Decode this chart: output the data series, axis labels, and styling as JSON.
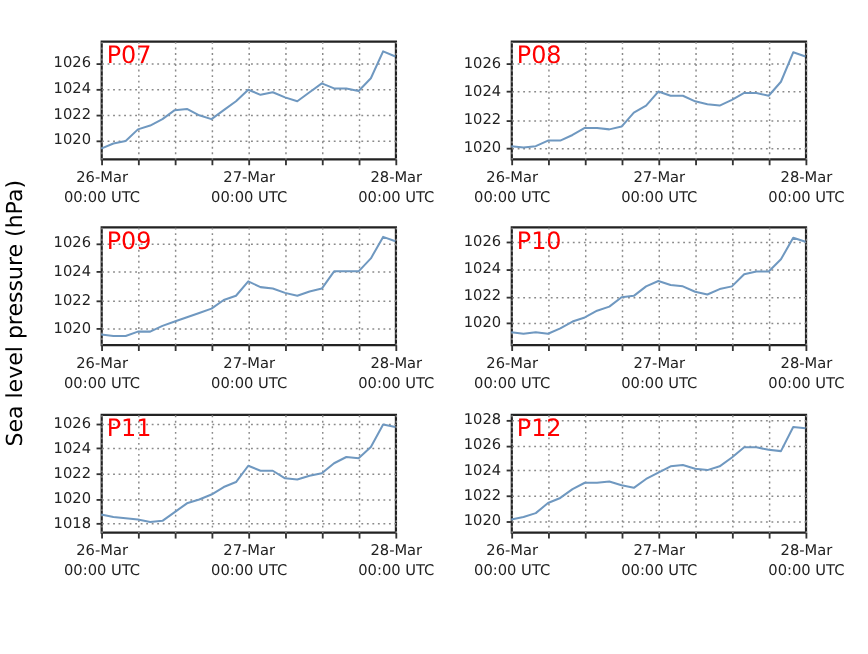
{
  "chart_data": [
    {
      "type": "line",
      "title": "P07",
      "categories": [
        "26-Mar\n00:00 UTC",
        null,
        null,
        null,
        null,
        null,
        null,
        null,
        null,
        null,
        null,
        null,
        "27-Mar\n00:00 UTC",
        null,
        null,
        null,
        null,
        null,
        null,
        null,
        null,
        null,
        null,
        null,
        "28-Mar\n00:00 UTC"
      ],
      "series": [
        {
          "color": "#6f98c0",
          "values": [
            1019.3,
            1019.7,
            1019.9,
            1020.8,
            1021.1,
            1021.6,
            1022.3,
            1022.4,
            1021.9,
            1021.6,
            1022.3,
            1023.0,
            1023.9,
            1023.5,
            1023.7,
            1023.3,
            1023.0,
            1023.7,
            1024.4,
            1024.0,
            1024.0,
            1023.8,
            1024.8,
            1026.9,
            1026.5
          ]
        }
      ],
      "ylim": [
        1018.5,
        1027.7
      ],
      "yticks": [
        1020,
        1022,
        1024,
        1026
      ],
      "grid": true,
      "line_style": "solid"
    },
    {
      "type": "line",
      "title": "P08",
      "categories": [
        "26-Mar\n00:00 UTC",
        null,
        null,
        null,
        null,
        null,
        null,
        null,
        null,
        null,
        null,
        null,
        "27-Mar\n00:00 UTC",
        null,
        null,
        null,
        null,
        null,
        null,
        null,
        null,
        null,
        null,
        null,
        "28-Mar\n00:00 UTC"
      ],
      "series": [
        {
          "color": "#6f98c0",
          "values": [
            1020.1,
            1020.0,
            1020.1,
            1020.5,
            1020.5,
            1020.9,
            1021.4,
            1021.4,
            1021.3,
            1021.5,
            1022.5,
            1023.0,
            1024.0,
            1023.7,
            1023.7,
            1023.3,
            1023.1,
            1023.0,
            1023.4,
            1023.9,
            1023.9,
            1023.7,
            1024.7,
            1026.8,
            1026.5
          ]
        }
      ],
      "ylim": [
        1019.2,
        1027.6
      ],
      "yticks": [
        1020,
        1022,
        1024,
        1026
      ],
      "grid": true,
      "line_style": "solid"
    },
    {
      "type": "line",
      "title": "P09",
      "ylabel": "Sea level pressure (hPa)",
      "categories": [
        "26-Mar\n00:00 UTC",
        null,
        null,
        null,
        null,
        null,
        null,
        null,
        null,
        null,
        null,
        null,
        "27-Mar\n00:00 UTC",
        null,
        null,
        null,
        null,
        null,
        null,
        null,
        null,
        null,
        null,
        null,
        "28-Mar\n00:00 UTC"
      ],
      "series": [
        {
          "color": "#6f98c0",
          "values": [
            1019.6,
            1019.5,
            1019.5,
            1019.8,
            1019.8,
            1020.2,
            1020.5,
            1020.8,
            1021.1,
            1021.4,
            1022.0,
            1022.3,
            1023.3,
            1022.9,
            1022.8,
            1022.5,
            1022.3,
            1022.6,
            1022.8,
            1024.0,
            1024.0,
            1024.0,
            1024.9,
            1026.4,
            1026.1
          ]
        }
      ],
      "ylim": [
        1018.9,
        1027.1
      ],
      "yticks": [
        1020,
        1022,
        1024,
        1026
      ],
      "grid": true,
      "line_style": "solid"
    },
    {
      "type": "line",
      "title": "P10",
      "categories": [
        "26-Mar\n00:00 UTC",
        null,
        null,
        null,
        null,
        null,
        null,
        null,
        null,
        null,
        null,
        null,
        "27-Mar\n00:00 UTC",
        null,
        null,
        null,
        null,
        null,
        null,
        null,
        null,
        null,
        null,
        null,
        "28-Mar\n00:00 UTC"
      ],
      "series": [
        {
          "color": "#6f98c0",
          "values": [
            1019.3,
            1019.2,
            1019.3,
            1019.2,
            1019.6,
            1020.1,
            1020.4,
            1020.9,
            1021.2,
            1021.9,
            1022.0,
            1022.7,
            1023.1,
            1022.8,
            1022.7,
            1022.3,
            1022.1,
            1022.5,
            1022.7,
            1023.6,
            1023.8,
            1023.8,
            1024.7,
            1026.3,
            1026.0
          ]
        }
      ],
      "ylim": [
        1018.4,
        1027.1
      ],
      "yticks": [
        1020,
        1022,
        1024,
        1026
      ],
      "grid": true,
      "line_style": "solid"
    },
    {
      "type": "line",
      "title": "P11",
      "categories": [
        "26-Mar\n00:00 UTC",
        null,
        null,
        null,
        null,
        null,
        null,
        null,
        null,
        null,
        null,
        null,
        "27-Mar\n00:00 UTC",
        null,
        null,
        null,
        null,
        null,
        null,
        null,
        null,
        null,
        null,
        null,
        "28-Mar\n00:00 UTC"
      ],
      "series": [
        {
          "color": "#6f98c0",
          "values": [
            1018.7,
            1018.5,
            1018.4,
            1018.3,
            1018.1,
            1018.2,
            1018.9,
            1019.6,
            1019.9,
            1020.3,
            1020.9,
            1021.3,
            1022.6,
            1022.2,
            1022.2,
            1021.6,
            1021.5,
            1021.8,
            1022.0,
            1022.8,
            1023.3,
            1023.2,
            1024.1,
            1025.9,
            1025.7
          ]
        }
      ],
      "ylim": [
        1017.3,
        1026.7
      ],
      "yticks": [
        1018,
        1020,
        1022,
        1024,
        1026
      ],
      "grid": true,
      "line_style": "solid"
    },
    {
      "type": "line",
      "title": "P12",
      "categories": [
        "26-Mar\n00:00 UTC",
        null,
        null,
        null,
        null,
        null,
        null,
        null,
        null,
        null,
        null,
        null,
        "27-Mar\n00:00 UTC",
        null,
        null,
        null,
        null,
        null,
        null,
        null,
        null,
        null,
        null,
        null,
        "28-Mar\n00:00 UTC"
      ],
      "series": [
        {
          "color": "#6f98c0",
          "values": [
            1020.1,
            1020.3,
            1020.6,
            1021.4,
            1021.8,
            1022.5,
            1023.0,
            1023.0,
            1023.1,
            1022.8,
            1022.6,
            1023.3,
            1023.8,
            1024.3,
            1024.4,
            1024.1,
            1024.0,
            1024.3,
            1025.0,
            1025.8,
            1025.8,
            1025.6,
            1025.5,
            1027.4,
            1027.3
          ]
        }
      ],
      "ylim": [
        1019.1,
        1028.4
      ],
      "yticks": [
        1020,
        1022,
        1024,
        1026,
        1028
      ],
      "grid": true,
      "line_style": "solid"
    }
  ]
}
